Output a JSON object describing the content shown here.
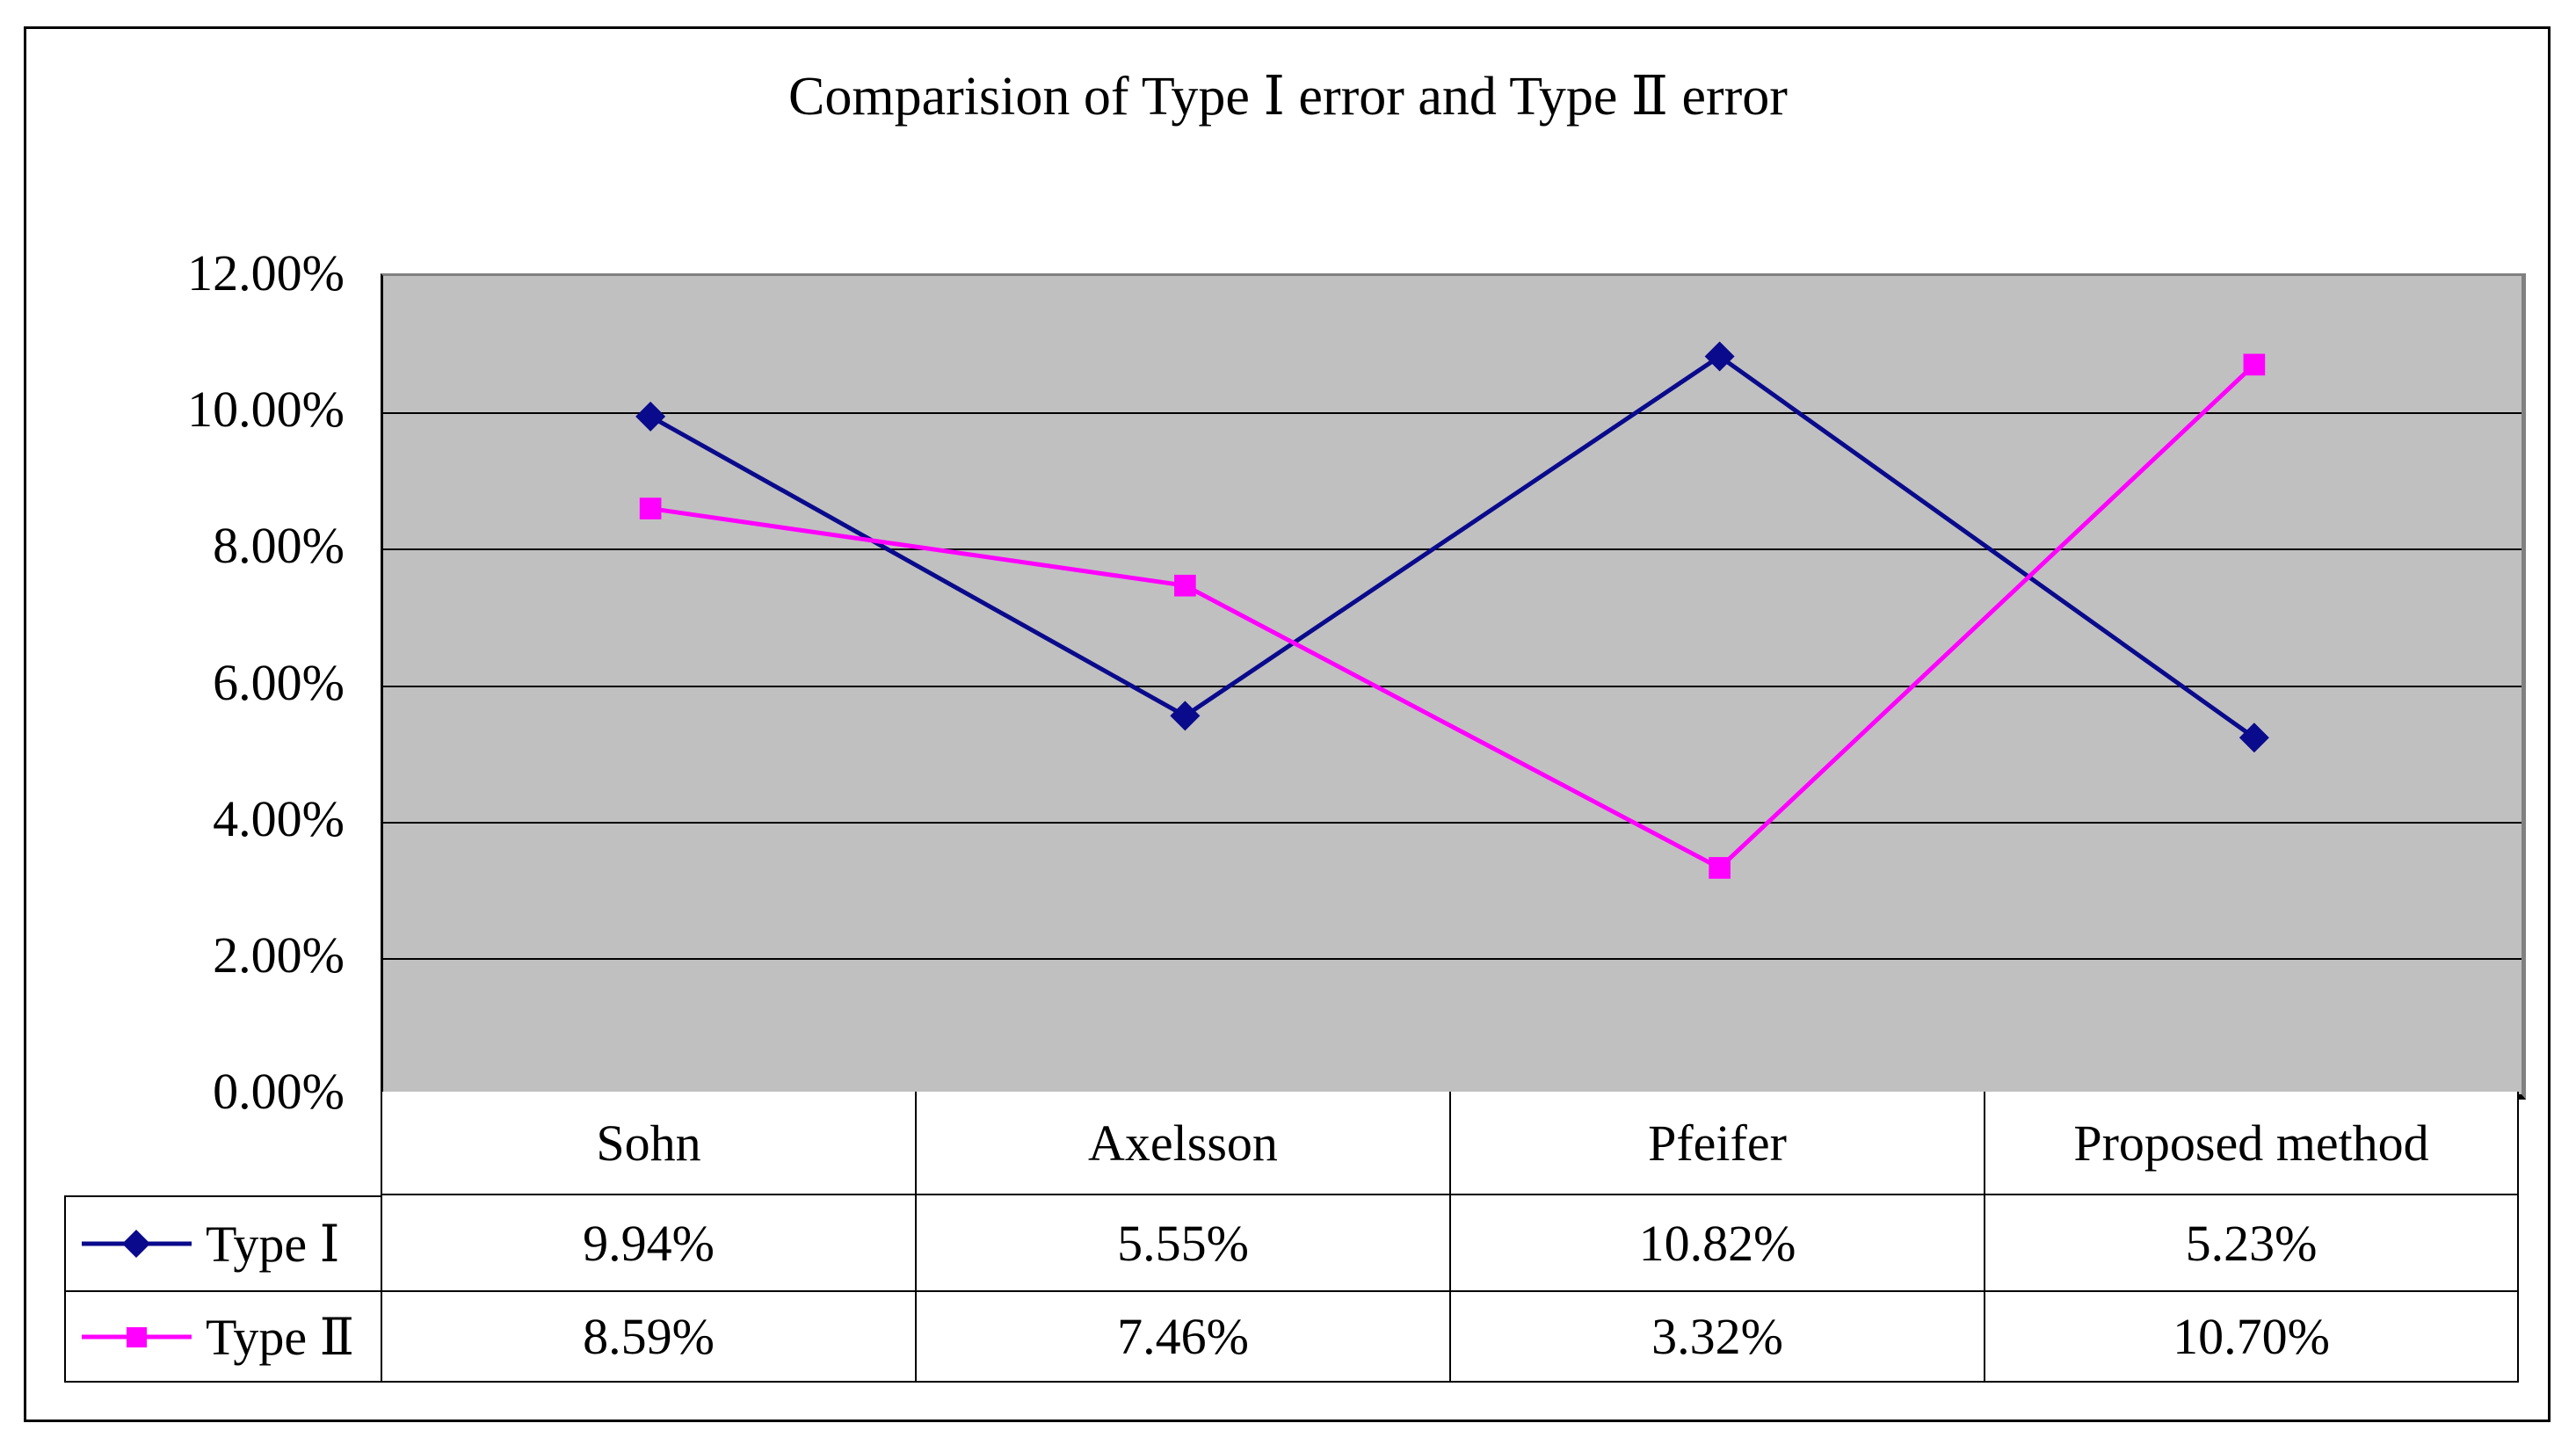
{
  "title": "Comparision of Type Ⅰ error and Type Ⅱ error",
  "chart_data": {
    "type": "line",
    "title": "Comparision of Type Ⅰ error and Type Ⅱ error",
    "categories": [
      "Sohn",
      "Axelsson",
      "Pfeifer",
      "Proposed method"
    ],
    "series": [
      {
        "name": "Type Ⅰ",
        "color": "#0a0a8c",
        "marker": "diamond",
        "values": [
          9.94,
          5.55,
          10.82,
          5.23
        ],
        "labels": [
          "9.94%",
          "5.55%",
          "10.82%",
          "5.23%"
        ]
      },
      {
        "name": "Type Ⅱ",
        "color": "#ff00ff",
        "marker": "square",
        "values": [
          8.59,
          7.46,
          3.32,
          10.7
        ],
        "labels": [
          "8.59%",
          "7.46%",
          "3.32%",
          "10.70%"
        ]
      }
    ],
    "xlabel": "",
    "ylabel": "",
    "ylim": [
      0,
      12
    ],
    "ytick_step": 2,
    "yticks": [
      "12.00%",
      "10.00%",
      "8.00%",
      "6.00%",
      "4.00%",
      "2.00%",
      "0.00%"
    ],
    "grid": "horizontal-only",
    "legend_position": "table-left-column",
    "colors": {
      "plot_background": "#c0c0c0",
      "plot_border": "#808080",
      "gridline": "#000000",
      "axis": "#000000",
      "table_border": "#000000",
      "text": "#000000",
      "page_background": "#ffffff"
    }
  }
}
